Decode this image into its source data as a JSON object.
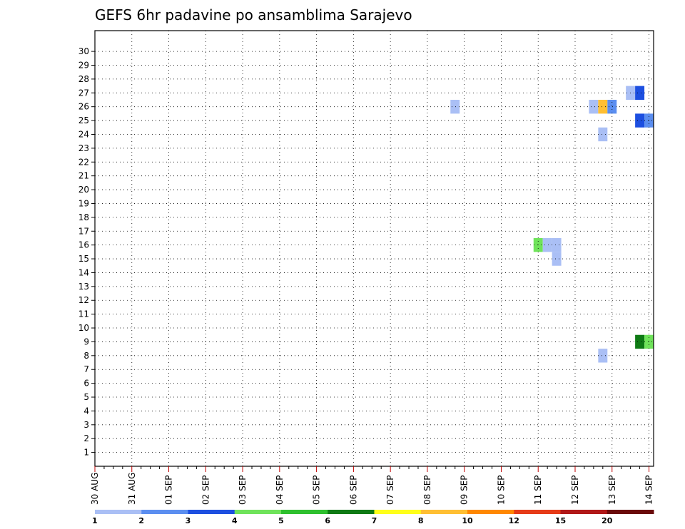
{
  "chart_data": {
    "type": "heatmap",
    "title": "GEFS 6hr padavine po ansamblima Sarajevo",
    "y_ticks": [
      "1",
      "2",
      "3",
      "4",
      "5",
      "6",
      "7",
      "8",
      "9",
      "10",
      "11",
      "12",
      "13",
      "14",
      "15",
      "16",
      "17",
      "18",
      "19",
      "20",
      "21",
      "22",
      "23",
      "24",
      "25",
      "26",
      "27",
      "28",
      "29",
      "30"
    ],
    "x_ticks": [
      "30 AUG",
      "31 AUG",
      "01 SEP",
      "02 SEP",
      "03 SEP",
      "04 SEP",
      "05 SEP",
      "06 SEP",
      "07 SEP",
      "08 SEP",
      "09 SEP",
      "10 SEP",
      "11 SEP",
      "12 SEP",
      "13 SEP",
      "14 SEP"
    ],
    "time_steps_per_day": 4,
    "grid": true,
    "legend": "bottom",
    "colorbar": {
      "labels": [
        "1",
        "2",
        "3",
        "4",
        "5",
        "6",
        "7",
        "8",
        "10",
        "12",
        "15",
        "20"
      ],
      "colors": [
        "#aabff5",
        "#5b8ef0",
        "#1d4fe0",
        "#6fe35a",
        "#2ec02e",
        "#0e7a14",
        "#ffff1a",
        "#ffbf33",
        "#ff8800",
        "#e63b18",
        "#b01818",
        "#6a0a0a"
      ]
    },
    "cells": [
      [
        30,
        61,
        0
      ],
      [
        30,
        62,
        0
      ],
      [
        30,
        71,
        0
      ],
      [
        30,
        72,
        1
      ],
      [
        30,
        73,
        0
      ],
      [
        30,
        91,
        1
      ],
      [
        30,
        107,
        1
      ],
      [
        30,
        108,
        0
      ],
      [
        30,
        115,
        0
      ],
      [
        29,
        65,
        0
      ],
      [
        29,
        69,
        2
      ],
      [
        29,
        70,
        0
      ],
      [
        29,
        80,
        0
      ],
      [
        29,
        81,
        2
      ],
      [
        29,
        82,
        1
      ],
      [
        29,
        100,
        0
      ],
      [
        29,
        108,
        2
      ],
      [
        29,
        115,
        7
      ],
      [
        29,
        116,
        2
      ],
      [
        28,
        113,
        0
      ],
      [
        28,
        114,
        2
      ],
      [
        28,
        116,
        4
      ],
      [
        28,
        117,
        0
      ],
      [
        27,
        58,
        0
      ],
      [
        27,
        59,
        2
      ],
      [
        26,
        39,
        0
      ],
      [
        26,
        54,
        0
      ],
      [
        26,
        55,
        7
      ],
      [
        26,
        56,
        1
      ],
      [
        26,
        62,
        7
      ],
      [
        26,
        71,
        1
      ],
      [
        26,
        72,
        11
      ],
      [
        26,
        73,
        8
      ],
      [
        26,
        74,
        2
      ],
      [
        26,
        75,
        2
      ],
      [
        26,
        85,
        0
      ],
      [
        26,
        113,
        5
      ],
      [
        26,
        114,
        1
      ],
      [
        26,
        115,
        1
      ],
      [
        25,
        59,
        2
      ],
      [
        25,
        60,
        1
      ],
      [
        24,
        55,
        0
      ],
      [
        24,
        111,
        1
      ],
      [
        24,
        112,
        0
      ],
      [
        23,
        95,
        0
      ],
      [
        23,
        96,
        1
      ],
      [
        23,
        97,
        4
      ],
      [
        23,
        98,
        5
      ],
      [
        23,
        111,
        0
      ],
      [
        23,
        112,
        0
      ],
      [
        23,
        115,
        0
      ],
      [
        23,
        116,
        0
      ],
      [
        22,
        73,
        0
      ],
      [
        22,
        74,
        2
      ],
      [
        22,
        95,
        0
      ],
      [
        22,
        108,
        0
      ],
      [
        22,
        109,
        0
      ],
      [
        22,
        110,
        0
      ],
      [
        21,
        87,
        0
      ],
      [
        21,
        91,
        1
      ],
      [
        21,
        92,
        1
      ],
      [
        21,
        93,
        11
      ],
      [
        21,
        94,
        11
      ],
      [
        21,
        95,
        7
      ],
      [
        21,
        96,
        9
      ],
      [
        21,
        117,
        1
      ],
      [
        20,
        115,
        2
      ],
      [
        20,
        118,
        0
      ],
      [
        19,
        87,
        1
      ],
      [
        19,
        88,
        1
      ],
      [
        19,
        96,
        0
      ],
      [
        18,
        84,
        0
      ],
      [
        18,
        85,
        11
      ],
      [
        18,
        86,
        1
      ],
      [
        18,
        90,
        1
      ],
      [
        18,
        91,
        3
      ],
      [
        18,
        95,
        0
      ],
      [
        18,
        96,
        6
      ],
      [
        18,
        97,
        3
      ],
      [
        18,
        110,
        0
      ],
      [
        18,
        111,
        0
      ],
      [
        17,
        90,
        1
      ],
      [
        17,
        91,
        0
      ],
      [
        17,
        95,
        4
      ],
      [
        17,
        96,
        1
      ],
      [
        16,
        48,
        3
      ],
      [
        16,
        49,
        0
      ],
      [
        16,
        50,
        0
      ],
      [
        16,
        95,
        2
      ],
      [
        16,
        96,
        0
      ],
      [
        16,
        103,
        2
      ],
      [
        16,
        104,
        1
      ],
      [
        15,
        50,
        0
      ],
      [
        15,
        76,
        1
      ],
      [
        15,
        84,
        1
      ],
      [
        15,
        91,
        1
      ],
      [
        15,
        95,
        2
      ],
      [
        15,
        96,
        0
      ],
      [
        15,
        103,
        2
      ],
      [
        15,
        104,
        6
      ],
      [
        15,
        105,
        0
      ],
      [
        14,
        90,
        0
      ],
      [
        14,
        91,
        0
      ],
      [
        14,
        94,
        1
      ],
      [
        14,
        96,
        7
      ],
      [
        14,
        103,
        6
      ],
      [
        13,
        73,
        3
      ],
      [
        13,
        102,
        0
      ],
      [
        13,
        116,
        0
      ],
      [
        13,
        117,
        1
      ],
      [
        12,
        85,
        1
      ],
      [
        12,
        89,
        1
      ],
      [
        12,
        90,
        0
      ],
      [
        12,
        91,
        0
      ],
      [
        12,
        96,
        0
      ],
      [
        11,
        109,
        0
      ],
      [
        11,
        110,
        2
      ],
      [
        11,
        111,
        4
      ],
      [
        11,
        112,
        5
      ],
      [
        11,
        113,
        2
      ],
      [
        10,
        91,
        0
      ],
      [
        10,
        92,
        1
      ],
      [
        10,
        95,
        1
      ],
      [
        10,
        96,
        1
      ],
      [
        9,
        59,
        5
      ],
      [
        9,
        60,
        3
      ],
      [
        9,
        81,
        4
      ],
      [
        9,
        82,
        1
      ],
      [
        9,
        83,
        9
      ],
      [
        9,
        84,
        3
      ],
      [
        9,
        85,
        0
      ],
      [
        9,
        86,
        2
      ],
      [
        8,
        55,
        0
      ],
      [
        8,
        62,
        0
      ],
      [
        8,
        63,
        2
      ],
      [
        8,
        64,
        10
      ],
      [
        8,
        65,
        2
      ],
      [
        8,
        101,
        0
      ],
      [
        8,
        102,
        4
      ],
      [
        8,
        103,
        7
      ],
      [
        8,
        108,
        2
      ],
      [
        8,
        109,
        0
      ],
      [
        7,
        110,
        0
      ],
      [
        7,
        112,
        0
      ],
      [
        7,
        117,
        5
      ],
      [
        7,
        118,
        0
      ],
      [
        6,
        67,
        2
      ],
      [
        6,
        68,
        0
      ],
      [
        6,
        69,
        0
      ],
      [
        6,
        95,
        0
      ],
      [
        6,
        96,
        5
      ],
      [
        6,
        102,
        3
      ],
      [
        6,
        103,
        1
      ],
      [
        6,
        108,
        5
      ],
      [
        6,
        109,
        5
      ],
      [
        6,
        110,
        5
      ],
      [
        4,
        104,
        8
      ],
      [
        4,
        105,
        8
      ],
      [
        3,
        78,
        0
      ],
      [
        3,
        79,
        0
      ],
      [
        2,
        117,
        1
      ],
      [
        2,
        118,
        0
      ]
    ]
  }
}
